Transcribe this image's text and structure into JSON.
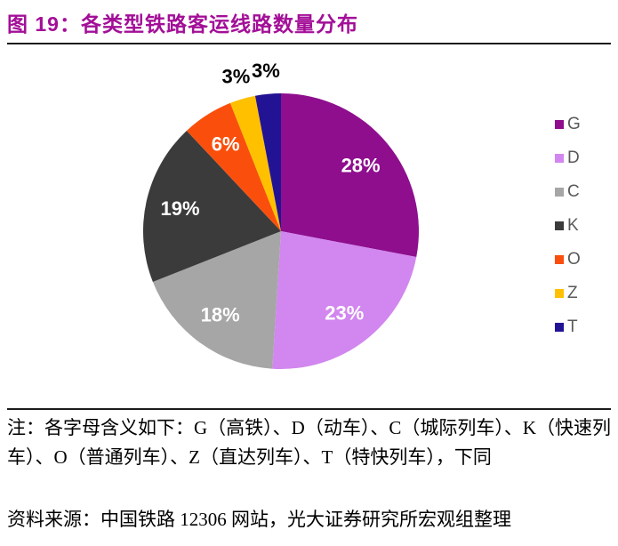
{
  "title": "图 19：各类型铁路客运线路数量分布",
  "chart_data": {
    "type": "pie",
    "categories": [
      "G",
      "D",
      "C",
      "K",
      "O",
      "Z",
      "T"
    ],
    "values": [
      28,
      23,
      18,
      19,
      6,
      3,
      3
    ],
    "labels": [
      "28%",
      "23%",
      "18%",
      "19%",
      "6%",
      "3%",
      "3%"
    ],
    "colors": [
      "#8E0E8E",
      "#D286EF",
      "#A6A6A6",
      "#3B3B3B",
      "#FA4F0C",
      "#FFC000",
      "#221394"
    ],
    "start_angle_deg": 0,
    "direction": "clockwise",
    "legend_position": "right",
    "inside_label_color": "#FFFFFF",
    "outside_label_color": "#000000",
    "outside_label_threshold_pct": 5
  },
  "notes": {
    "note": "注：各字母含义如下：G（高铁）、D（动车）、C（城际列车）、K（快速列车）、O（普通列车）、Z（直达列车）、T（特快列车），下同",
    "source": "资料来源：中国铁路 12306 网站，光大证券研究所宏观组整理"
  },
  "theme": {
    "title_color": "#A30F98",
    "divider_color": "#1C1C1C",
    "legend_text_color": "#595959",
    "background": "#FFFFFF"
  }
}
